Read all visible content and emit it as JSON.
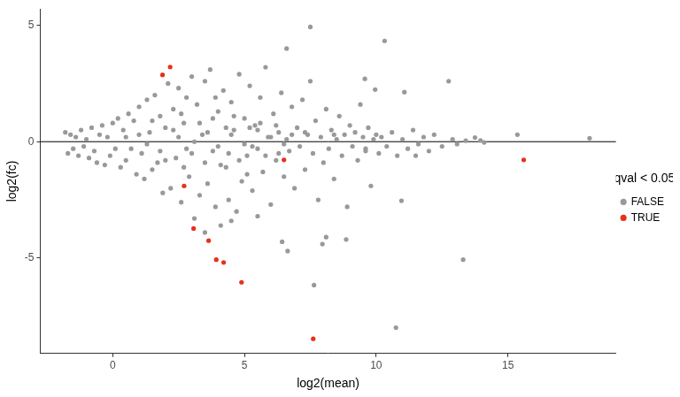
{
  "chart_data": {
    "type": "scatter",
    "x_label": "log2(mean)",
    "y_label": "log2(fc)",
    "legend_title": "qval < 0.05",
    "legend": "right",
    "grid": false,
    "xlim": [
      -2.75,
      19.1
    ],
    "ylim": [
      -9.1,
      5.7
    ],
    "xticks": [
      0,
      5,
      10,
      15
    ],
    "yticks": [
      -5,
      0,
      5
    ],
    "series": [
      {
        "name": "FALSE",
        "color": "#999999",
        "marker": "circle",
        "x": [
          -1.8,
          -1.7,
          -1.6,
          -1.5,
          -1.4,
          -1.3,
          -1.2,
          -1.1,
          -1.0,
          -0.9,
          -0.8,
          -0.7,
          -0.6,
          -0.5,
          -0.4,
          -0.3,
          -0.2,
          -0.1,
          0.0,
          0.1,
          0.2,
          0.3,
          0.4,
          0.5,
          0.6,
          0.7,
          0.8,
          0.9,
          1.0,
          1.1,
          1.2,
          1.3,
          1.4,
          1.5,
          1.6,
          1.7,
          1.8,
          1.9,
          2.0,
          2.1,
          2.2,
          2.3,
          2.4,
          2.5,
          2.6,
          2.7,
          2.8,
          2.9,
          3.0,
          3.1,
          3.2,
          3.3,
          3.4,
          3.5,
          3.6,
          3.7,
          3.8,
          3.9,
          4.0,
          4.1,
          4.2,
          4.3,
          4.4,
          4.5,
          4.6,
          4.7,
          4.8,
          4.9,
          5.0,
          5.1,
          5.2,
          5.3,
          5.4,
          5.5,
          5.6,
          5.7,
          5.8,
          5.9,
          6.0,
          6.1,
          6.2,
          6.3,
          6.4,
          6.5,
          6.6,
          6.7,
          6.8,
          6.9,
          7.0,
          7.1,
          7.2,
          7.3,
          7.4,
          7.5,
          7.6,
          7.7,
          7.8,
          7.9,
          8.0,
          8.1,
          8.2,
          8.3,
          8.4,
          8.5,
          8.6,
          8.7,
          8.8,
          8.9,
          9.0,
          9.1,
          9.2,
          9.3,
          9.4,
          9.5,
          9.6,
          9.7,
          9.8,
          9.9,
          10.0,
          10.1,
          10.2,
          10.4,
          10.6,
          10.8,
          11.0,
          11.2,
          11.4,
          11.6,
          11.8,
          12.0,
          7.5,
          10.32,
          6.6,
          13.3,
          10.75,
          7.64,
          18.1,
          15.36,
          13.96,
          10.96,
          8.86,
          8.1,
          7.96,
          6.64,
          6.43,
          12.75,
          9.57,
          9.96,
          11.07,
          13.4,
          13.07,
          13.75,
          14.1,
          12.5,
          12.2,
          12.9,
          11.5,
          3.5,
          4.5,
          5.5,
          1.5,
          2.5,
          3.0,
          3.5,
          4.0,
          4.5,
          5.0,
          5.5,
          6.0,
          6.5,
          2.0,
          2.8,
          3.3,
          3.8,
          4.3,
          4.8,
          5.3,
          5.8,
          6.3,
          6.8,
          1.0,
          1.8,
          2.3,
          2.7,
          3.1,
          3.6,
          4.1,
          4.6,
          5.1,
          5.6,
          0.5,
          1.3,
          2.6,
          3.9,
          4.4,
          5.2,
          6.2,
          7.3,
          8.4,
          9.6
        ],
        "values": [
          0.4,
          -0.5,
          0.3,
          -0.3,
          0.2,
          -0.6,
          0.5,
          -0.2,
          0.1,
          -0.7,
          0.6,
          -0.4,
          -0.9,
          0.3,
          0.7,
          -1.0,
          0.2,
          -0.6,
          0.8,
          -0.3,
          1.0,
          -1.1,
          0.5,
          -0.8,
          1.2,
          -0.3,
          0.9,
          -1.4,
          1.5,
          -0.5,
          -1.6,
          1.8,
          0.4,
          -1.2,
          2.0,
          -0.9,
          1.1,
          -2.2,
          0.6,
          2.5,
          -2.0,
          1.4,
          -0.7,
          2.3,
          -2.6,
          0.8,
          1.9,
          -1.5,
          2.8,
          -3.3,
          1.6,
          -2.3,
          0.3,
          2.6,
          -1.8,
          3.1,
          -0.4,
          -2.8,
          1.3,
          -3.6,
          2.2,
          -1.1,
          -2.5,
          1.7,
          0.5,
          -3.0,
          2.9,
          -1.7,
          1.0,
          -0.6,
          2.4,
          -2.1,
          0.7,
          -0.3,
          1.9,
          -1.3,
          3.2,
          0.2,
          -2.7,
          1.2,
          -0.8,
          0.4,
          2.1,
          -1.5,
          0.1,
          -0.4,
          1.5,
          -2.0,
          0.6,
          -0.2,
          1.8,
          -1.2,
          0.3,
          2.6,
          -0.5,
          0.9,
          -2.5,
          0.2,
          -0.9,
          1.4,
          -0.3,
          0.5,
          -1.6,
          0.1,
          1.1,
          -0.6,
          0.3,
          -2.8,
          0.7,
          -0.2,
          0.4,
          -0.8,
          1.6,
          0.2,
          -0.4,
          0.6,
          -1.9,
          0.1,
          0.3,
          -0.5,
          0.2,
          -0.2,
          0.4,
          -0.6,
          0.1,
          -0.3,
          0.5,
          -0.1,
          0.2,
          -0.4,
          4.93,
          4.33,
          4.0,
          -5.07,
          -7.99,
          -6.16,
          0.15,
          0.3,
          0.05,
          -2.54,
          -4.2,
          -4.1,
          -4.4,
          -4.7,
          -4.3,
          2.6,
          2.7,
          2.24,
          2.13,
          0.04,
          -0.1,
          0.18,
          -0.03,
          -0.2,
          0.3,
          0.1,
          -0.6,
          -3.9,
          -3.4,
          -3.2,
          0.9,
          0.2,
          -0.5,
          -0.9,
          -0.2,
          0.3,
          -0.1,
          0.5,
          0.2,
          -0.1,
          -0.8,
          -0.3,
          0.8,
          1.0,
          0.6,
          -0.8,
          -0.2,
          -0.6,
          -0.5,
          0.3,
          0.3,
          -0.4,
          0.5,
          -1.1,
          0.0,
          0.4,
          -1.0,
          1.1,
          -1.4,
          0.8,
          0.2,
          -0.1,
          1.2,
          1.9,
          -0.5,
          0.6,
          0.7,
          0.4,
          0.3,
          -0.3
        ]
      },
      {
        "name": "TRUE",
        "color": "#e8311a",
        "marker": "circle",
        "x": [
          1.89,
          2.18,
          2.71,
          3.07,
          3.64,
          3.93,
          4.21,
          4.89,
          6.5,
          7.61,
          15.6
        ],
        "values": [
          2.87,
          3.21,
          -1.9,
          -3.73,
          -4.25,
          -5.07,
          -5.19,
          -6.04,
          -0.78,
          -8.47,
          -0.78
        ]
      }
    ]
  }
}
